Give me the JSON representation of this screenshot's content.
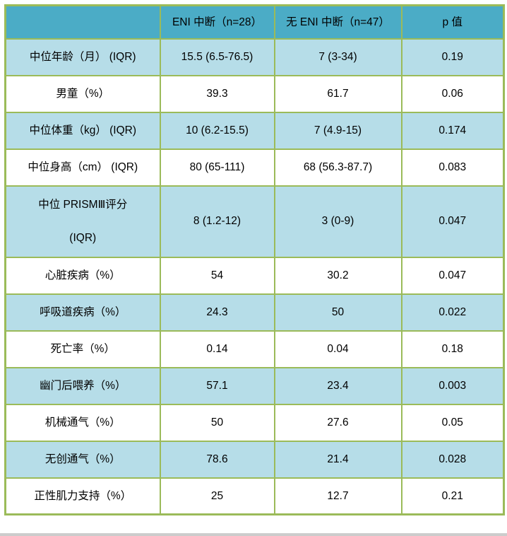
{
  "table": {
    "style": {
      "header_bg": "#4BACC6",
      "header_text_color": "#FFFFFF",
      "band_row_bg": "#B6DDE8",
      "plain_row_bg": "#FFFFFF",
      "border_color": "#9BBB59",
      "body_text_color": "#000000"
    },
    "header": {
      "col0": "",
      "col1": "ENI 中断（n=28）",
      "col2": "无 ENI 中断（n=47）",
      "col3": "p 值"
    },
    "rows": [
      {
        "label": "中位年龄（月） (IQR)",
        "eni": "15.5 (6.5-76.5)",
        "no_eni": "7 (3-34)",
        "p": "0.19"
      },
      {
        "label": "男童（%）",
        "eni": "39.3",
        "no_eni": "61.7",
        "p": "0.06"
      },
      {
        "label": "中位体重（kg） (IQR)",
        "eni": "10 (6.2-15.5)",
        "no_eni": "7 (4.9-15)",
        "p": "0.174"
      },
      {
        "label": "中位身高（cm） (IQR)",
        "eni": "80 (65-111)",
        "no_eni": "68 (56.3-87.7)",
        "p": "0.083"
      },
      {
        "label": "中位 PRISMⅢ评分\n\n(IQR)",
        "eni": "8 (1.2-12)",
        "no_eni": "3 (0-9)",
        "p": "0.047"
      },
      {
        "label": "心脏疾病（%）",
        "eni": "54",
        "no_eni": "30.2",
        "p": "0.047"
      },
      {
        "label": "呼吸道疾病（%）",
        "eni": "24.3",
        "no_eni": "50",
        "p": "0.022"
      },
      {
        "label": "死亡率（%）",
        "eni": "0.14",
        "no_eni": "0.04",
        "p": "0.18"
      },
      {
        "label": "幽门后喂养（%）",
        "eni": "57.1",
        "no_eni": "23.4",
        "p": "0.003"
      },
      {
        "label": "机械通气（%）",
        "eni": "50",
        "no_eni": "27.6",
        "p": "0.05"
      },
      {
        "label": "无创通气（%）",
        "eni": "78.6",
        "no_eni": "21.4",
        "p": "0.028"
      },
      {
        "label": "正性肌力支持（%）",
        "eni": "25",
        "no_eni": "12.7",
        "p": "0.21"
      }
    ]
  }
}
